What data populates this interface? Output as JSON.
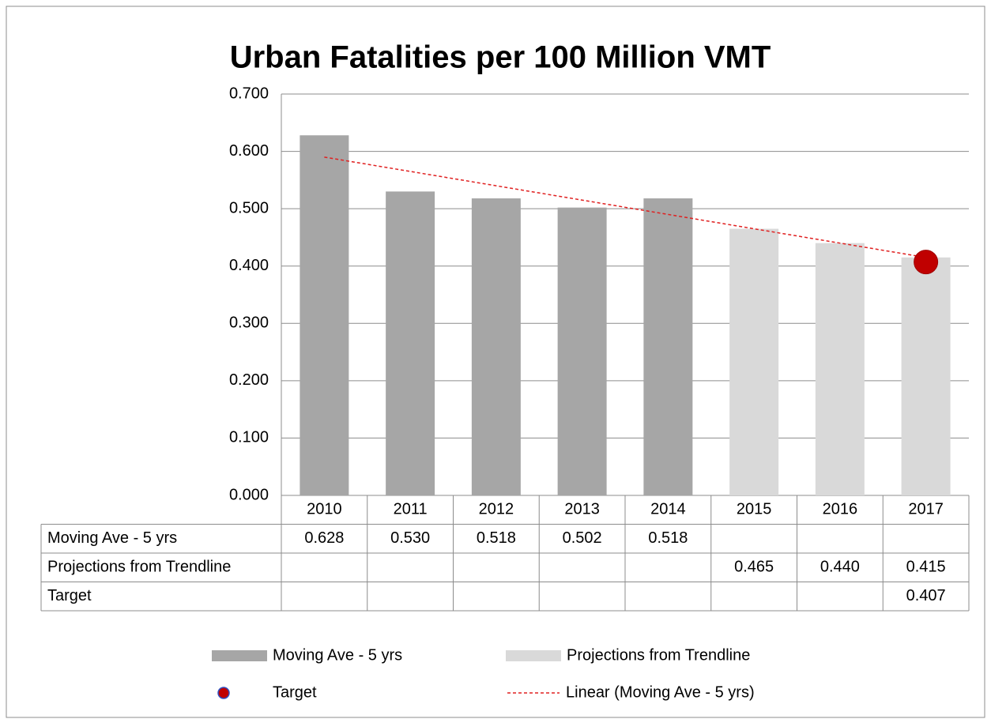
{
  "chart_data": {
    "type": "bar",
    "title": "Urban Fatalities per 100 Million VMT",
    "categories": [
      "2010",
      "2011",
      "2012",
      "2013",
      "2014",
      "2015",
      "2016",
      "2017"
    ],
    "series": [
      {
        "name": "Moving Ave - 5 yrs",
        "color": "#a6a6a6",
        "values": [
          0.628,
          0.53,
          0.518,
          0.502,
          0.518,
          null,
          null,
          null
        ],
        "value_labels": [
          "0.628",
          "0.530",
          "0.518",
          "0.502",
          "0.518",
          null,
          null,
          null
        ]
      },
      {
        "name": "Projections from Trendline",
        "color": "#d9d9d9",
        "values": [
          null,
          null,
          null,
          null,
          null,
          0.465,
          0.44,
          0.415
        ],
        "value_labels": [
          null,
          null,
          null,
          null,
          null,
          "0.465",
          "0.440",
          "0.415"
        ]
      },
      {
        "name": "Target",
        "color": "#c00000",
        "type": "scatter",
        "values": [
          null,
          null,
          null,
          null,
          null,
          null,
          null,
          0.407
        ],
        "value_labels": [
          null,
          null,
          null,
          null,
          null,
          null,
          null,
          "0.407"
        ]
      }
    ],
    "trendline": {
      "name": "Linear (Moving Ave - 5 yrs)",
      "color": "#e02020",
      "values": [
        0.59,
        0.565,
        0.54,
        0.515,
        0.49,
        0.465,
        0.44,
        0.415
      ]
    },
    "ylim": [
      0,
      0.7
    ],
    "yticks": [
      {
        "value": 0,
        "label": "0.000"
      },
      {
        "value": 0.1,
        "label": "0.100"
      },
      {
        "value": 0.2,
        "label": "0.200"
      },
      {
        "value": 0.3,
        "label": "0.300"
      },
      {
        "value": 0.4,
        "label": "0.400"
      },
      {
        "value": 0.5,
        "label": "0.500"
      },
      {
        "value": 0.6,
        "label": "0.600"
      },
      {
        "value": 0.7,
        "label": "0.700"
      }
    ],
    "grid": true
  }
}
